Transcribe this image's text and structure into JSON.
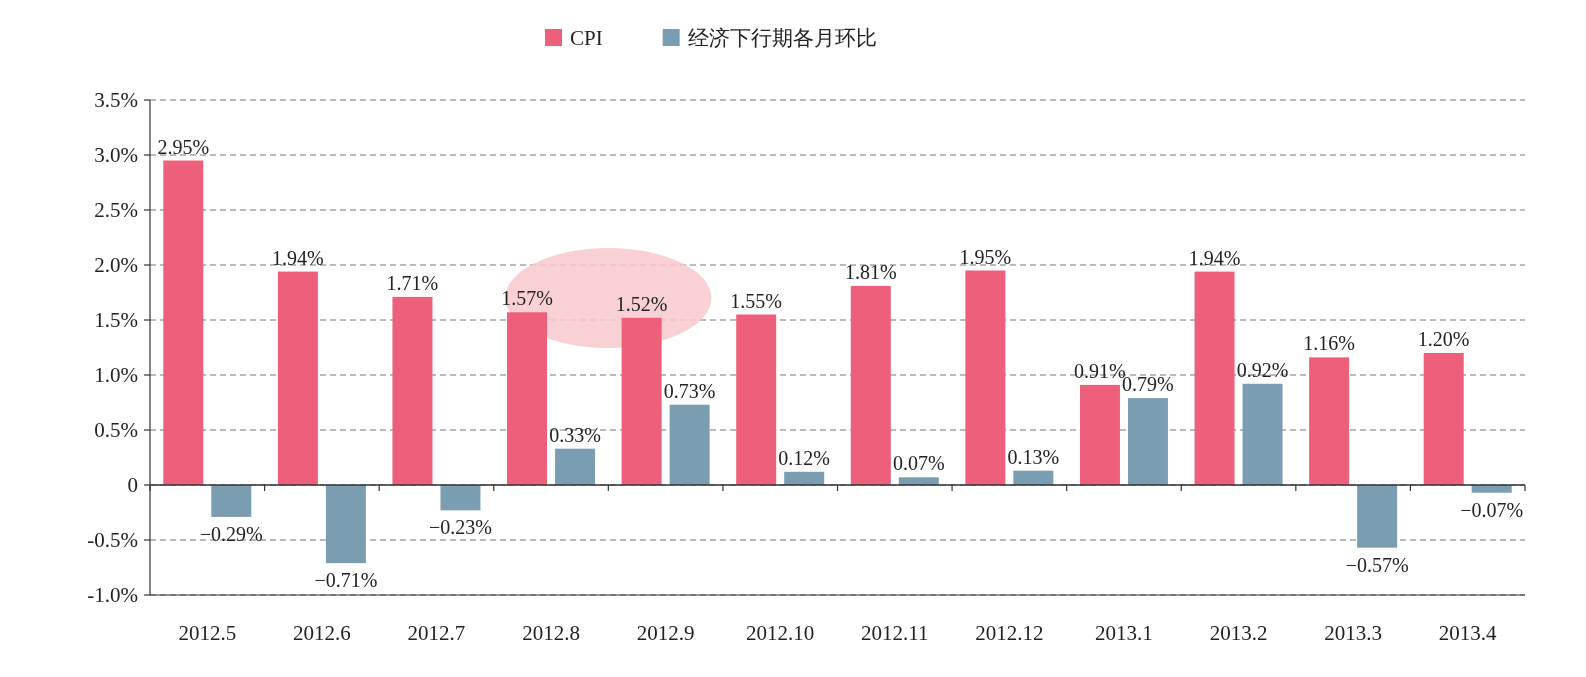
{
  "chart_data": {
    "type": "bar",
    "categories": [
      "2012.5",
      "2012.6",
      "2012.7",
      "2012.8",
      "2012.9",
      "2012.10",
      "2012.11",
      "2012.12",
      "2013.1",
      "2013.2",
      "2013.3",
      "2013.4"
    ],
    "series": [
      {
        "name": "CPI",
        "color": "#ee5f7b",
        "values": [
          2.95,
          1.94,
          1.71,
          1.57,
          1.52,
          1.55,
          1.81,
          1.95,
          0.91,
          1.94,
          1.16,
          1.2
        ],
        "value_labels": [
          "2.95%",
          "1.94%",
          "1.71%",
          "1.57%",
          "1.52%",
          "1.55%",
          "1.81%",
          "1.95%",
          "0.91%",
          "1.94%",
          "1.16%",
          "1.20%"
        ]
      },
      {
        "name": "经济下行期各月环比",
        "color": "#7b9db2",
        "values": [
          -0.29,
          -0.71,
          -0.23,
          0.33,
          0.73,
          0.12,
          0.07,
          0.13,
          0.79,
          0.92,
          -0.57,
          -0.07
        ],
        "value_labels": [
          "−0.29%",
          "−0.71%",
          "−0.23%",
          "0.33%",
          "0.73%",
          "0.12%",
          "0.07%",
          "0.13%",
          "0.79%",
          "0.92%",
          "−0.57%",
          "−0.07%"
        ]
      }
    ],
    "ylim": [
      -1.0,
      3.5
    ],
    "yticks": [
      {
        "value": -1.0,
        "label": "-1.0%"
      },
      {
        "value": -0.5,
        "label": "-0.5%"
      },
      {
        "value": 0,
        "label": "0"
      },
      {
        "value": 0.5,
        "label": "0.5%"
      },
      {
        "value": 1.0,
        "label": "1.0%"
      },
      {
        "value": 1.5,
        "label": "1.5%"
      },
      {
        "value": 2.0,
        "label": "2.0%"
      },
      {
        "value": 2.5,
        "label": "2.5%"
      },
      {
        "value": 3.0,
        "label": "3.0%"
      },
      {
        "value": 3.5,
        "label": "3.5%"
      }
    ],
    "grid": "y",
    "legend": "top"
  }
}
